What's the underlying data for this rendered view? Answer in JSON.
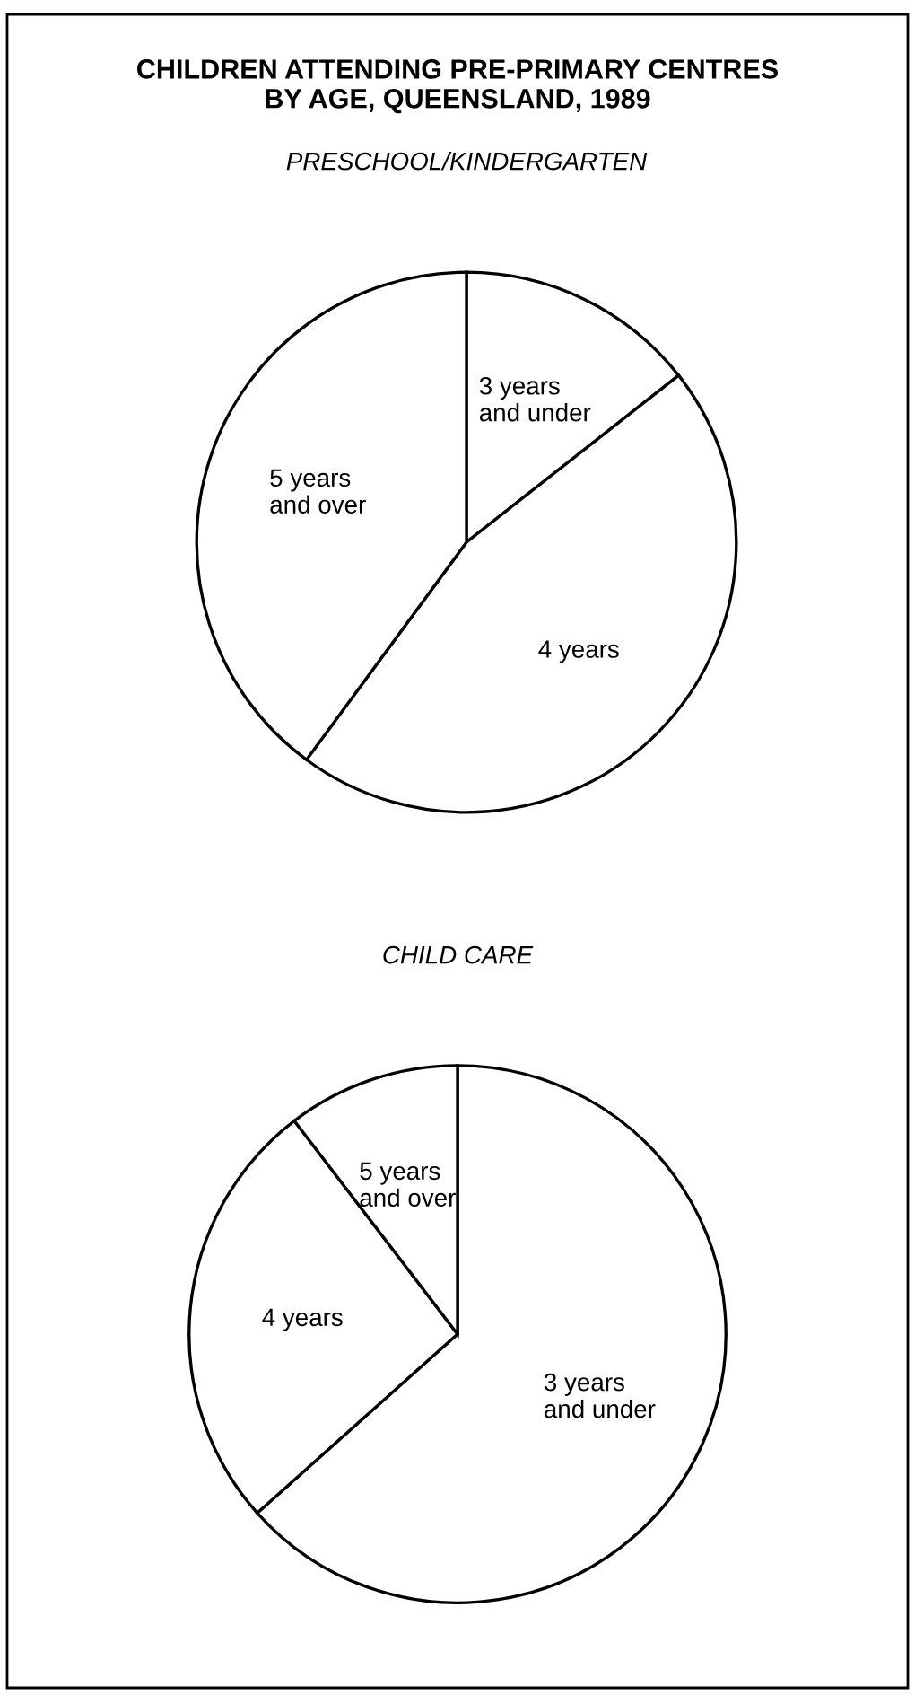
{
  "chart_data": [
    {
      "type": "pie",
      "title": "CHILDREN ATTENDING PRE-PRIMARY CENTRES\nBY AGE, QUEENSLAND, 1989",
      "subtitle": "PRESCHOOL/KINDERGARTEN",
      "categories": [
        "3 years\nand under",
        "4 years",
        "5 years\nand over"
      ],
      "values": [
        14.4,
        45.7,
        39.9
      ],
      "colors": [
        "#ffffff",
        "#ffffff",
        "#ffffff"
      ]
    },
    {
      "type": "pie",
      "subtitle": "CHILD CARE",
      "categories": [
        "3 years\nand under",
        "4 years",
        "5 years\nand over"
      ],
      "values": [
        63.4,
        26.2,
        10.4
      ],
      "colors": [
        "#ffffff",
        "#ffffff",
        "#ffffff"
      ]
    }
  ]
}
